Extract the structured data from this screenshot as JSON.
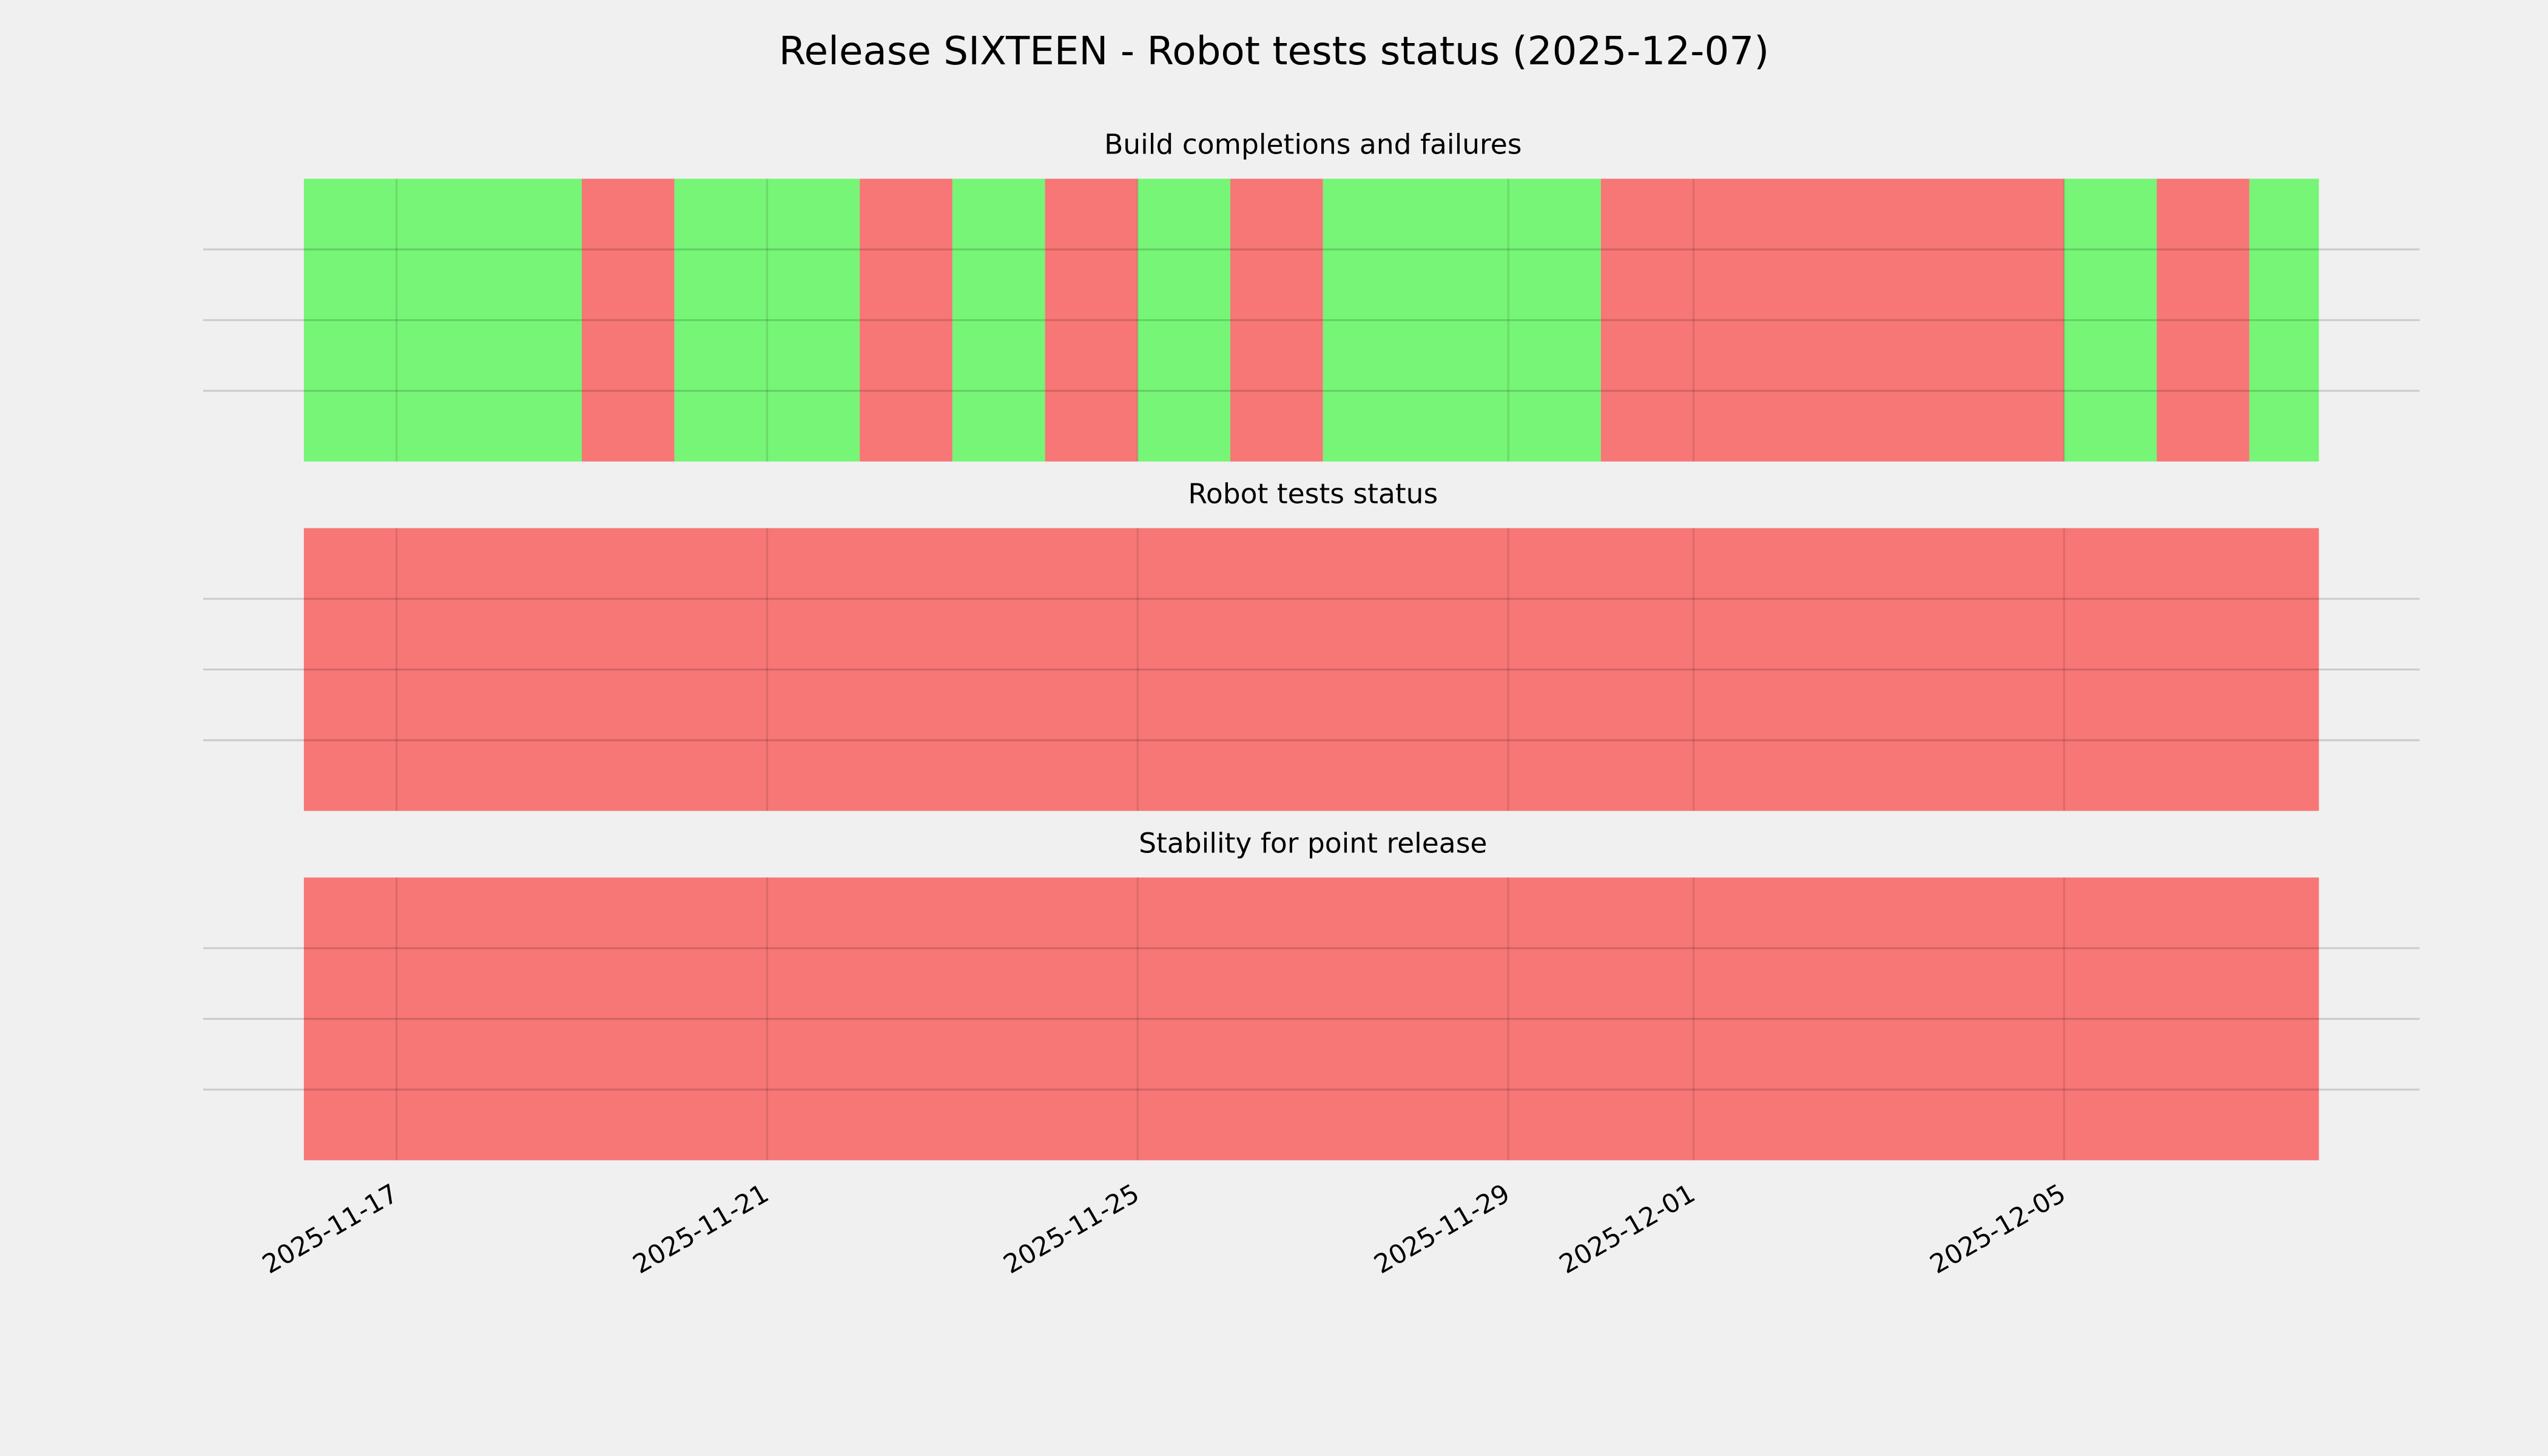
{
  "title": "Release SIXTEEN - Robot tests status (2025-12-07)",
  "chart_data": [
    {
      "type": "timeline",
      "title": "Build completions and failures",
      "spans": [
        {
          "start": "2025-11-16",
          "end": "2025-11-19",
          "color": "#76f576"
        },
        {
          "start": "2025-11-19",
          "end": "2025-11-20",
          "color": "#f77676"
        },
        {
          "start": "2025-11-20",
          "end": "2025-11-22",
          "color": "#76f576"
        },
        {
          "start": "2025-11-22",
          "end": "2025-11-23",
          "color": "#f77676"
        },
        {
          "start": "2025-11-23",
          "end": "2025-11-24",
          "color": "#76f576"
        },
        {
          "start": "2025-11-24",
          "end": "2025-11-25",
          "color": "#f77676"
        },
        {
          "start": "2025-11-25",
          "end": "2025-11-26",
          "color": "#76f576"
        },
        {
          "start": "2025-11-26",
          "end": "2025-11-27",
          "color": "#f77676"
        },
        {
          "start": "2025-11-27",
          "end": "2025-11-30",
          "color": "#76f576"
        },
        {
          "start": "2025-11-30",
          "end": "2025-12-05",
          "color": "#f77676"
        },
        {
          "start": "2025-12-05",
          "end": "2025-12-06",
          "color": "#76f576"
        },
        {
          "start": "2025-12-06",
          "end": "2025-12-07",
          "color": "#f77676"
        },
        {
          "start": "2025-12-07",
          "end": "2025-12-07T18:00",
          "color": "#76f576"
        }
      ],
      "ylim": [
        0,
        1
      ],
      "yticks": [
        0.25,
        0.5,
        0.75
      ],
      "grid": true,
      "xticks": [
        "2025-11-17",
        "2025-11-21",
        "2025-11-25",
        "2025-11-29",
        "2025-12-01",
        "2025-12-05"
      ]
    },
    {
      "type": "timeline",
      "title": "Robot tests status",
      "spans": [
        {
          "start": "2025-11-16",
          "end": "2025-12-07T18:00",
          "color": "#f77676"
        }
      ],
      "ylim": [
        0,
        1
      ],
      "yticks": [
        0.25,
        0.5,
        0.75
      ],
      "grid": true,
      "xticks": [
        "2025-11-17",
        "2025-11-21",
        "2025-11-25",
        "2025-11-29",
        "2025-12-01",
        "2025-12-05"
      ]
    },
    {
      "type": "timeline",
      "title": "Stability for point release",
      "spans": [
        {
          "start": "2025-11-16",
          "end": "2025-12-07T18:00",
          "color": "#f77676"
        }
      ],
      "ylim": [
        0,
        1
      ],
      "yticks": [
        0.25,
        0.5,
        0.75
      ],
      "grid": true,
      "xticks": [
        "2025-11-17",
        "2025-11-21",
        "2025-11-25",
        "2025-11-29",
        "2025-12-01",
        "2025-12-05"
      ]
    }
  ]
}
